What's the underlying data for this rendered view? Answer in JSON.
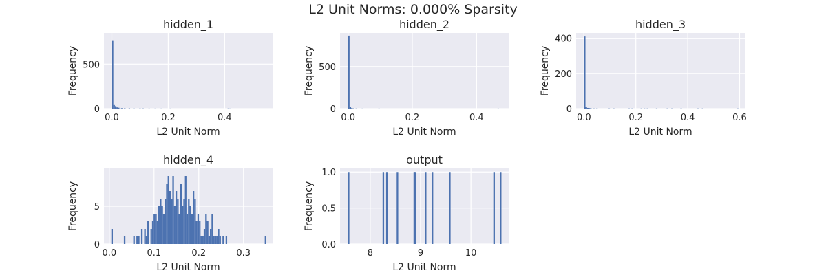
{
  "figure": {
    "title": "L2 Unit Norms: 0.000% Sparsity",
    "background": "#ffffff",
    "axes_facecolor": "#eaeaf2",
    "grid_color": "#ffffff",
    "bar_color": "#4c72b0",
    "text_color": "#262626"
  },
  "chart_data": [
    {
      "type": "bar",
      "title": "hidden_1",
      "xlabel": "L2 Unit Norm",
      "ylabel": "Frequency",
      "xlim": [
        -0.028,
        0.57
      ],
      "ylim": [
        0,
        850
      ],
      "xticks": [
        0.0,
        0.2,
        0.4
      ],
      "xtick_labels": [
        "0.0",
        "0.2",
        "0.4"
      ],
      "yticks": [
        0,
        500
      ],
      "ytick_labels": [
        "0",
        "500"
      ],
      "grid": true,
      "bin_width": 0.0054,
      "bins": [
        [
          0.0,
          768
        ],
        [
          0.0054,
          40
        ],
        [
          0.0108,
          28
        ],
        [
          0.0162,
          14
        ],
        [
          0.0216,
          10
        ],
        [
          0.0324,
          5
        ],
        [
          0.0432,
          4
        ],
        [
          0.0594,
          3
        ],
        [
          0.0756,
          2
        ],
        [
          0.0972,
          2
        ],
        [
          0.108,
          2
        ],
        [
          0.1296,
          1
        ],
        [
          0.1512,
          1
        ],
        [
          0.1728,
          1
        ],
        [
          0.2052,
          1
        ],
        [
          0.4104,
          2
        ],
        [
          0.4158,
          1
        ]
      ]
    },
    {
      "type": "bar",
      "title": "hidden_2",
      "xlabel": "L2 Unit Norm",
      "ylabel": "Frequency",
      "xlim": [
        -0.025,
        0.5
      ],
      "ylim": [
        0,
        900
      ],
      "xticks": [
        0.0,
        0.2,
        0.4
      ],
      "xtick_labels": [
        "0.0",
        "0.2",
        "0.4"
      ],
      "yticks": [
        0,
        500
      ],
      "ytick_labels": [
        "0",
        "500"
      ],
      "grid": true,
      "bin_width": 0.0047,
      "bins": [
        [
          0.0,
          868
        ],
        [
          0.0047,
          18
        ],
        [
          0.0094,
          6
        ],
        [
          0.0141,
          3
        ],
        [
          0.0235,
          2
        ],
        [
          0.0423,
          1
        ],
        [
          0.094,
          1
        ],
        [
          0.4653,
          1
        ]
      ]
    },
    {
      "type": "bar",
      "title": "hidden_3",
      "xlabel": "L2 Unit Norm",
      "ylabel": "Frequency",
      "xlim": [
        -0.03,
        0.62
      ],
      "ylim": [
        0,
        430
      ],
      "xticks": [
        0.0,
        0.2,
        0.4,
        0.6
      ],
      "xtick_labels": [
        "0.0",
        "0.2",
        "0.4",
        "0.6"
      ],
      "yticks": [
        0,
        200,
        400
      ],
      "ytick_labels": [
        "0",
        "200",
        "400"
      ],
      "grid": true,
      "bin_width": 0.0059,
      "bins": [
        [
          0.0,
          410
        ],
        [
          0.0059,
          10
        ],
        [
          0.0118,
          4
        ],
        [
          0.0177,
          3
        ],
        [
          0.0236,
          2
        ],
        [
          0.0354,
          1
        ],
        [
          0.0472,
          1
        ],
        [
          0.0944,
          1
        ],
        [
          0.1121,
          1
        ],
        [
          0.1711,
          1
        ],
        [
          0.1829,
          1
        ],
        [
          0.2183,
          1
        ],
        [
          0.2301,
          1
        ],
        [
          0.2419,
          1
        ],
        [
          0.2773,
          1
        ],
        [
          0.3186,
          1
        ],
        [
          0.3363,
          1
        ],
        [
          0.3717,
          1
        ],
        [
          0.4366,
          1
        ],
        [
          0.4543,
          1
        ],
        [
          0.59,
          1
        ]
      ]
    },
    {
      "type": "bar",
      "title": "hidden_4",
      "xlabel": "L2 Unit Norm",
      "ylabel": "Frequency",
      "xlim": [
        -0.012,
        0.365
      ],
      "ylim": [
        0,
        10
      ],
      "xticks": [
        0.0,
        0.1,
        0.2,
        0.3
      ],
      "xtick_labels": [
        "0.0",
        "0.1",
        "0.2",
        "0.3"
      ],
      "yticks": [
        0,
        5
      ],
      "ytick_labels": [
        "0",
        "5"
      ],
      "grid": true,
      "bin_width": 0.0035,
      "bins": [
        [
          0.0045,
          2
        ],
        [
          0.0325,
          1
        ],
        [
          0.0535,
          1
        ],
        [
          0.0605,
          1
        ],
        [
          0.064,
          1
        ],
        [
          0.071,
          2
        ],
        [
          0.078,
          2
        ],
        [
          0.0815,
          1
        ],
        [
          0.085,
          3
        ],
        [
          0.092,
          2
        ],
        [
          0.0955,
          3
        ],
        [
          0.099,
          4
        ],
        [
          0.1025,
          4
        ],
        [
          0.106,
          3
        ],
        [
          0.1095,
          5
        ],
        [
          0.113,
          6
        ],
        [
          0.1165,
          5
        ],
        [
          0.12,
          4
        ],
        [
          0.1235,
          6
        ],
        [
          0.127,
          8
        ],
        [
          0.1305,
          9
        ],
        [
          0.134,
          7
        ],
        [
          0.1375,
          6
        ],
        [
          0.141,
          9
        ],
        [
          0.1445,
          5
        ],
        [
          0.148,
          7
        ],
        [
          0.1515,
          6
        ],
        [
          0.155,
          4
        ],
        [
          0.1585,
          8
        ],
        [
          0.162,
          5
        ],
        [
          0.1655,
          6
        ],
        [
          0.169,
          9
        ],
        [
          0.1725,
          4
        ],
        [
          0.176,
          6
        ],
        [
          0.1795,
          5
        ],
        [
          0.183,
          4
        ],
        [
          0.1865,
          7
        ],
        [
          0.19,
          6
        ],
        [
          0.1935,
          3
        ],
        [
          0.197,
          4
        ],
        [
          0.2005,
          3
        ],
        [
          0.204,
          1
        ],
        [
          0.2075,
          1
        ],
        [
          0.211,
          2
        ],
        [
          0.2145,
          4
        ],
        [
          0.218,
          3
        ],
        [
          0.2215,
          1
        ],
        [
          0.225,
          2
        ],
        [
          0.2285,
          4
        ],
        [
          0.232,
          1
        ],
        [
          0.2355,
          1
        ],
        [
          0.239,
          1
        ],
        [
          0.2425,
          2
        ],
        [
          0.246,
          1
        ],
        [
          0.253,
          1
        ],
        [
          0.26,
          1
        ],
        [
          0.3475,
          1
        ]
      ]
    },
    {
      "type": "bar",
      "title": "output",
      "xlabel": "L2 Unit Norm",
      "ylabel": "Frequency",
      "xlim": [
        7.4,
        10.75
      ],
      "ylim": [
        0,
        1.05
      ],
      "xticks": [
        8,
        9,
        10
      ],
      "xtick_labels": [
        "8",
        "9",
        "10"
      ],
      "yticks": [
        0.0,
        0.5,
        1.0
      ],
      "ytick_labels": [
        "0.0",
        "0.5",
        "1.0"
      ],
      "grid": true,
      "bin_width": 0.0311,
      "bins": [
        [
          7.555,
          1
        ],
        [
          8.245,
          1
        ],
        [
          8.315,
          1
        ],
        [
          8.525,
          1
        ],
        [
          8.86,
          1
        ],
        [
          8.88,
          1
        ],
        [
          9.085,
          1
        ],
        [
          9.22,
          1
        ],
        [
          9.565,
          1
        ],
        [
          10.445,
          1
        ],
        [
          10.575,
          1
        ]
      ]
    }
  ]
}
